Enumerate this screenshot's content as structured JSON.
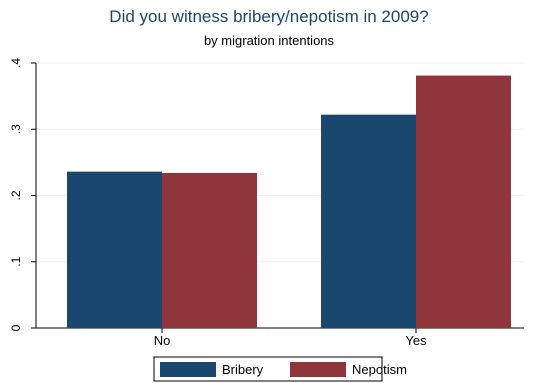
{
  "chart_data": {
    "type": "bar",
    "title": "Did you witness bribery/nepotism in 2009?",
    "subtitle": "by migration intentions",
    "categories": [
      "No",
      "Yes"
    ],
    "series": [
      {
        "name": "Bribery",
        "values": [
          0.236,
          0.322
        ],
        "color": "#1a476f"
      },
      {
        "name": "Nepotism",
        "values": [
          0.234,
          0.381
        ],
        "color": "#90353b"
      }
    ],
    "ylim": [
      0,
      0.4
    ],
    "yticks": [
      0,
      0.1,
      0.2,
      0.3,
      0.4
    ],
    "ytick_labels": [
      "0",
      ".1",
      ".2",
      ".3",
      ".4"
    ],
    "xlabel": "",
    "ylabel": "",
    "grid": true,
    "legend_position": "bottom"
  }
}
